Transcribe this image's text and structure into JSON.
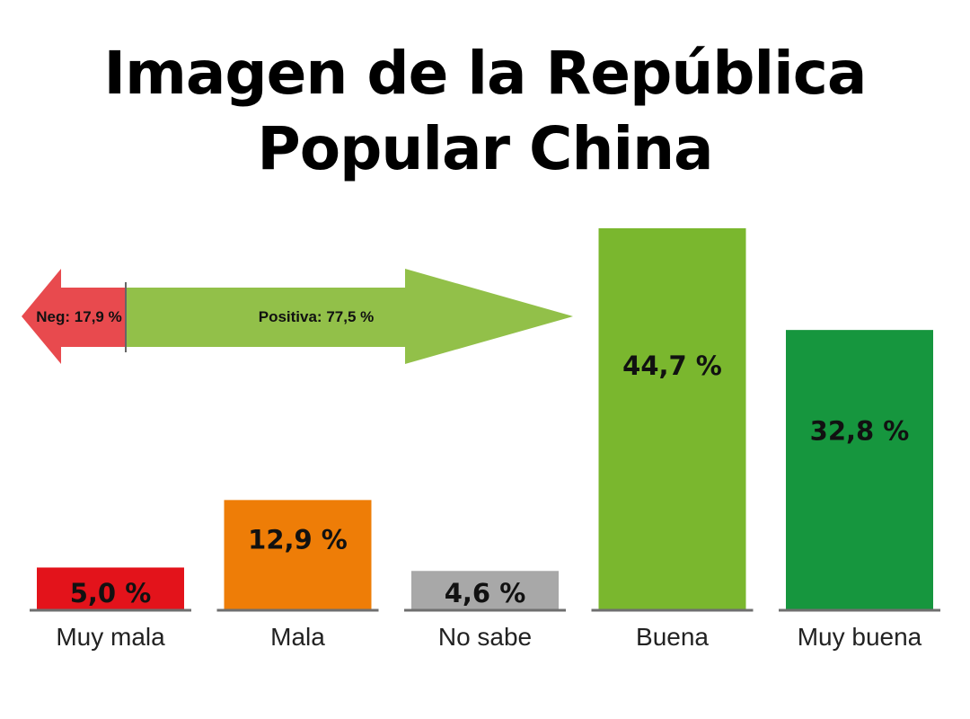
{
  "title_lines": [
    "Imagen de la República",
    "Popular China"
  ],
  "chart_data": {
    "type": "bar",
    "categories": [
      "Muy mala",
      "Mala",
      "No sabe",
      "Buena",
      "Muy buena"
    ],
    "values": [
      5.0,
      12.9,
      4.6,
      44.7,
      32.8
    ],
    "value_labels": [
      "5,0 %",
      "12,9 %",
      "4,6 %",
      "44,7 %",
      "32,8 %"
    ],
    "colors": [
      "#e3131b",
      "#ee7d07",
      "#a8a8a8",
      "#7ab72e",
      "#16963e"
    ],
    "title": "Imagen de la República Popular China",
    "xlabel": "",
    "ylabel": "",
    "ylim": [
      0,
      44.7
    ],
    "grid": false,
    "legend": "none",
    "annotations": {
      "negative": {
        "label": "Neg: 17,9 %",
        "value": 17.9,
        "color": "#e84a4e"
      },
      "positive": {
        "label": "Positiva: 77,5 %",
        "value": 77.5,
        "color": "#92c049"
      }
    }
  }
}
